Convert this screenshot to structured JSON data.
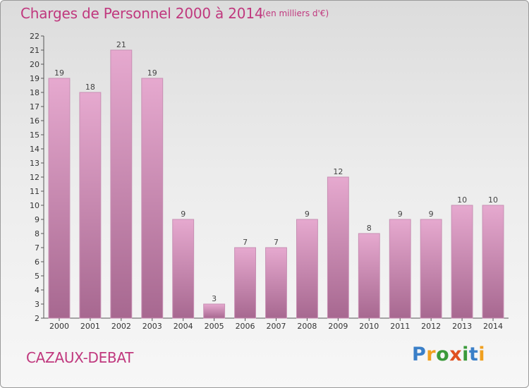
{
  "header": {
    "title": "Charges de Personnel 2000 à 2014",
    "subtitle": "(en milliers d'€)"
  },
  "footer": {
    "commune": "CAZAUX-DEBAT",
    "logo_letters": [
      {
        "char": "P",
        "color": "#3a7fc8"
      },
      {
        "char": "r",
        "color": "#f0a020"
      },
      {
        "char": "o",
        "color": "#3a9a3a"
      },
      {
        "char": "x",
        "color": "#e05020"
      },
      {
        "char": "i",
        "color": "#3a9a3a"
      },
      {
        "char": "t",
        "color": "#3a7fc8"
      },
      {
        "char": "i",
        "color": "#f0a020"
      }
    ]
  },
  "colors": {
    "accent": "#c0387e",
    "bar_top": "#e6a9cf",
    "bar_bottom": "#a76890",
    "bar_border": "#c890b4"
  },
  "chart_data": {
    "type": "bar",
    "title": "Charges de Personnel 2000 à 2014",
    "subtitle": "(en milliers d'€)",
    "categories": [
      "2000",
      "2001",
      "2002",
      "2003",
      "2004",
      "2005",
      "2006",
      "2007",
      "2008",
      "2009",
      "2010",
      "2011",
      "2012",
      "2013",
      "2014"
    ],
    "values": [
      19,
      18,
      21,
      19,
      9,
      3,
      7,
      7,
      9,
      12,
      8,
      9,
      9,
      10,
      10
    ],
    "ylim": [
      2,
      22
    ],
    "y_ticks": [
      2,
      3,
      4,
      5,
      6,
      7,
      8,
      9,
      10,
      11,
      12,
      13,
      14,
      15,
      16,
      17,
      18,
      19,
      20,
      21,
      22
    ],
    "grid": false,
    "data_labels": true
  }
}
